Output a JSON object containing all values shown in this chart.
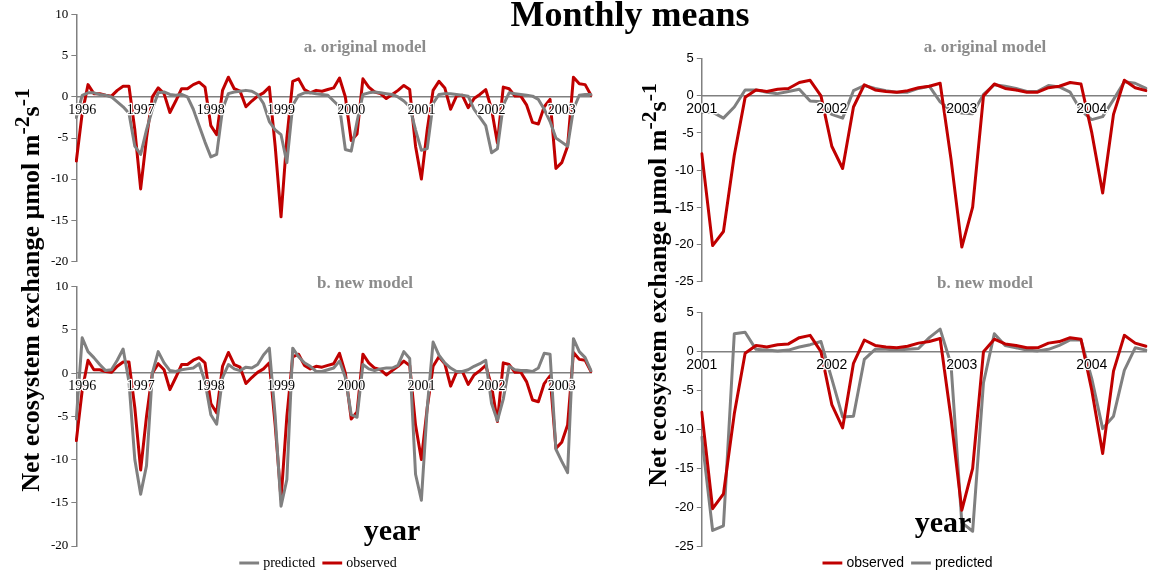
{
  "chart_data": [
    {
      "type": "line",
      "title": "Monthly means",
      "subtitle": "a. original model",
      "ylabel": "Net ecosystem exchange µmol m$^{-2}$s$^{-1}$",
      "marker": "none",
      "categories": [
        null,
        "1996",
        null,
        null,
        null,
        null,
        null,
        null,
        null,
        null,
        null,
        "1997",
        null,
        null,
        null,
        null,
        null,
        null,
        null,
        null,
        null,
        null,
        null,
        "1998",
        null,
        null,
        null,
        null,
        null,
        null,
        null,
        null,
        null,
        null,
        null,
        "1999",
        null,
        null,
        null,
        null,
        null,
        null,
        null,
        null,
        null,
        null,
        null,
        "2000",
        null,
        null,
        null,
        null,
        null,
        null,
        null,
        null,
        null,
        null,
        null,
        "2001",
        null,
        null,
        null,
        null,
        null,
        null,
        null,
        null,
        null,
        null,
        null,
        "2002",
        null,
        null,
        null,
        null,
        null,
        null,
        null,
        null,
        null,
        null,
        null,
        "2003",
        null,
        null,
        null,
        null,
        null
      ],
      "ylim": [
        -20,
        10
      ],
      "yticks": [
        -20,
        -15,
        -10,
        -5,
        0,
        5,
        10
      ],
      "series": [
        {
          "color": "#808080",
          "values": [
            -2.5,
            0.2,
            0.5,
            0.5,
            0.3,
            0.2,
            0,
            -0.6,
            -1.2,
            -2,
            -6,
            -7,
            -4,
            -1.5,
            0.5,
            0.6,
            0.3,
            0.2,
            0.3,
            0,
            -1.5,
            -3.5,
            -5.5,
            -7.3,
            -7,
            -1.5,
            0.4,
            0.6,
            0.7,
            0.8,
            0.7,
            0.3,
            -0.8,
            -3,
            -4,
            -4.6,
            -8,
            -1,
            0.2,
            0.5,
            0.5,
            0.4,
            0.3,
            0.2,
            -0.5,
            -1.2,
            -6.4,
            -6.6,
            -3,
            0.3,
            0.5,
            0.6,
            0.5,
            0.4,
            0.3,
            0,
            -0.5,
            -1.2,
            -4,
            -6.5,
            -6.3,
            -0.8,
            0.3,
            0.4,
            0.4,
            0.3,
            0.2,
            0.1,
            -1.5,
            -2.5,
            -3.5,
            -6.8,
            -6.3,
            -1,
            0.5,
            0.4,
            0.3,
            0.2,
            0.1,
            -0.3,
            -1.5,
            -3,
            -5,
            -5.5,
            -6,
            -1.5,
            0.2,
            0.3,
            0.3
          ]
        },
        {
          "color": "#c00000",
          "values": [
            -7.8,
            -2,
            1.5,
            0.4,
            0.4,
            0.2,
            0.1,
            0.8,
            1.3,
            1.3,
            -4,
            -11.2,
            -5,
            0,
            1.1,
            0.4,
            -1.9,
            -0.5,
            1,
            1,
            1.5,
            1.8,
            1.2,
            -3.5,
            -4.6,
            0.8,
            2.4,
            1,
            0.7,
            -1.2,
            -0.5,
            0.1,
            0.5,
            1.2,
            -6,
            -14.6,
            -5,
            1.9,
            2.2,
            0.9,
            0.5,
            0.8,
            0.7,
            0.9,
            1.1,
            2.3,
            0,
            -5.3,
            -4.5,
            2.2,
            1.2,
            0.6,
            0.4,
            -0.2,
            0.3,
            0.8,
            1.4,
            0.9,
            -6,
            -10,
            -4,
            0.8,
            1.9,
            1.1,
            -1.5,
            0.1,
            0.2,
            -1.3,
            -0.2,
            0.3,
            0.9,
            -1.5,
            -5.6,
            1.2,
            1,
            0.1,
            0.1,
            -1,
            -3.1,
            -3.3,
            -1.2,
            -0.3,
            -8.7,
            -8,
            -6,
            2.4,
            1.6,
            1.5,
            0.2
          ]
        }
      ]
    },
    {
      "type": "line",
      "subtitle": "b. new model",
      "xlabel": "year",
      "marker": "none",
      "legend": "bottom",
      "categories": [
        null,
        "1996",
        null,
        null,
        null,
        null,
        null,
        null,
        null,
        null,
        null,
        "1997",
        null,
        null,
        null,
        null,
        null,
        null,
        null,
        null,
        null,
        null,
        null,
        "1998",
        null,
        null,
        null,
        null,
        null,
        null,
        null,
        null,
        null,
        null,
        null,
        "1999",
        null,
        null,
        null,
        null,
        null,
        null,
        null,
        null,
        null,
        null,
        null,
        "2000",
        null,
        null,
        null,
        null,
        null,
        null,
        null,
        null,
        null,
        null,
        null,
        "2001",
        null,
        null,
        null,
        null,
        null,
        null,
        null,
        null,
        null,
        null,
        null,
        "2002",
        null,
        null,
        null,
        null,
        null,
        null,
        null,
        null,
        null,
        null,
        null,
        "2003",
        null,
        null,
        null,
        null,
        null
      ],
      "ylim": [
        -20,
        10
      ],
      "yticks": [
        -20,
        -15,
        -10,
        -5,
        0,
        5,
        10
      ],
      "series": [
        {
          "name": "predicted",
          "color": "#808080",
          "values": [
            -5.3,
            4.1,
            2.5,
            1.8,
            1,
            0.3,
            0.4,
            1.5,
            2.8,
            -1,
            -10,
            -14,
            -10.7,
            0,
            2.5,
            1.2,
            0.3,
            0.2,
            0.4,
            0.5,
            0.6,
            1.1,
            -1,
            -4.8,
            -5.9,
            -0.5,
            1,
            0.5,
            0.3,
            0.7,
            0.6,
            1,
            2.1,
            2.9,
            -5,
            -15.4,
            -12.3,
            2.9,
            1.9,
            1.2,
            0.8,
            0.2,
            0.2,
            0.4,
            0.6,
            1.4,
            -0.5,
            -4.8,
            -5.1,
            1,
            0.5,
            0.3,
            0.5,
            0.6,
            0.6,
            0.9,
            2.5,
            1.7,
            -11.7,
            -14.7,
            -4,
            3.6,
            2.1,
            1.2,
            0.6,
            0.2,
            0.2,
            0.4,
            0.8,
            1.1,
            1.5,
            -3.5,
            -5.5,
            -3,
            0.8,
            0.4,
            0.3,
            0.3,
            0.2,
            0.6,
            2.3,
            2.2,
            -8.8,
            -10.2,
            -11.5,
            4,
            2.5,
            1.8,
            0.3
          ]
        },
        {
          "name": "observed",
          "color": "#c00000",
          "values": [
            -7.8,
            -2,
            1.5,
            0.4,
            0.4,
            0.2,
            0.1,
            0.8,
            1.3,
            1.3,
            -4,
            -11.2,
            -5,
            0,
            1.1,
            0.4,
            -1.9,
            -0.5,
            1,
            1,
            1.5,
            1.8,
            1.2,
            -3.5,
            -4.6,
            0.8,
            2.4,
            1,
            0.7,
            -1.2,
            -0.5,
            0.1,
            0.5,
            1.2,
            -6,
            -14.6,
            -5,
            1.9,
            2.2,
            0.9,
            0.5,
            0.8,
            0.7,
            0.9,
            1.1,
            2.3,
            0,
            -5.3,
            -4.5,
            2.2,
            1.2,
            0.6,
            0.4,
            -0.2,
            0.3,
            0.8,
            1.4,
            0.9,
            -6,
            -10,
            -4,
            0.8,
            1.9,
            1.1,
            -1.5,
            0.1,
            0.2,
            -1.3,
            -0.2,
            0.3,
            0.9,
            -1.5,
            -5.6,
            1.2,
            1,
            0.1,
            0.1,
            -1,
            -3.1,
            -3.3,
            -1.2,
            -0.3,
            -8.7,
            -8,
            -6,
            2.4,
            1.6,
            1.5,
            0.2
          ]
        }
      ]
    },
    {
      "type": "line",
      "subtitle": "a. original model",
      "ylabel": "Net ecosystem exchange µmol m$^{-2}$s$^{-1}$",
      "marker": "none",
      "categories": [
        "2001",
        null,
        null,
        null,
        null,
        null,
        null,
        null,
        null,
        null,
        null,
        null,
        "2002",
        null,
        null,
        null,
        null,
        null,
        null,
        null,
        null,
        null,
        null,
        null,
        "2003",
        null,
        null,
        null,
        null,
        null,
        null,
        null,
        null,
        null,
        null,
        null,
        "2004",
        null,
        null,
        null,
        null,
        null
      ],
      "ylim": [
        -25,
        5
      ],
      "yticks": [
        -25,
        -20,
        -15,
        -10,
        -5,
        0,
        5
      ],
      "series": [
        {
          "color": "#c00000",
          "values": [
            -7.8,
            -20.2,
            -18.3,
            -8,
            -0.2,
            0.8,
            0.6,
            0.9,
            1,
            1.8,
            2.1,
            0,
            -6.8,
            -9.8,
            -1.5,
            1.5,
            0.8,
            0.6,
            0.5,
            0.7,
            1.1,
            1.3,
            1.7,
            -8.5,
            -20.4,
            -15,
            0,
            1.6,
            1,
            0.8,
            0.5,
            0.5,
            1.1,
            1.3,
            1.8,
            1.6,
            -5,
            -13.1,
            -2.5,
            2.1,
            1.1,
            0.7
          ]
        },
        {
          "color": "#808080",
          "values": [
            -2.2,
            -2.2,
            -3,
            -1.5,
            0.8,
            0.8,
            0.5,
            0.3,
            0.6,
            0.9,
            -0.7,
            -0.8,
            -2.5,
            -3,
            0.7,
            1.4,
            1,
            0.7,
            0.5,
            0.5,
            1,
            1.3,
            -0.8,
            -2,
            -2.3,
            -2.4,
            0.2,
            1.5,
            1.3,
            1,
            0.6,
            0.6,
            1.4,
            1.2,
            0.5,
            -2,
            -3.2,
            -2.8,
            -0.5,
            1.9,
            1.7,
            1
          ]
        }
      ]
    },
    {
      "type": "line",
      "subtitle": "b. new model",
      "xlabel": "year",
      "marker": "none",
      "legend": "bottom",
      "categories": [
        "2001",
        null,
        null,
        null,
        null,
        null,
        null,
        null,
        null,
        null,
        null,
        null,
        "2002",
        null,
        null,
        null,
        null,
        null,
        null,
        null,
        null,
        null,
        null,
        null,
        "2003",
        null,
        null,
        null,
        null,
        null,
        null,
        null,
        null,
        null,
        null,
        null,
        "2004",
        null,
        null,
        null,
        null,
        null
      ],
      "ylim": [
        -25,
        5
      ],
      "yticks": [
        -25,
        -20,
        -15,
        -10,
        -5,
        0,
        5
      ],
      "series": [
        {
          "name": "observed",
          "color": "#c00000",
          "values": [
            -7.8,
            -20.2,
            -18.3,
            -8,
            -0.2,
            0.8,
            0.6,
            0.9,
            1,
            1.8,
            2.1,
            0,
            -6.8,
            -9.8,
            -1.5,
            1.5,
            0.8,
            0.6,
            0.5,
            0.7,
            1.1,
            1.3,
            1.7,
            -8.5,
            -20.4,
            -15,
            0,
            1.6,
            1,
            0.8,
            0.5,
            0.5,
            1.1,
            1.3,
            1.8,
            1.6,
            -5,
            -13.1,
            -2.5,
            2.1,
            1.1,
            0.7
          ]
        },
        {
          "name": "predicted",
          "color": "#808080",
          "values": [
            -11,
            -23,
            -22.4,
            2.3,
            2.5,
            0.3,
            0.2,
            0.1,
            0.2,
            0.6,
            0.9,
            1.3,
            -3.5,
            -8.4,
            -8.3,
            -1,
            0.3,
            0.3,
            0.2,
            0.3,
            0.4,
            1.8,
            2.9,
            -1.6,
            -22,
            -23.1,
            -4,
            2.3,
            0.8,
            0.5,
            0.2,
            0.1,
            0.3,
            0.8,
            1.5,
            1.5,
            -3.5,
            -9.9,
            -8.3,
            -2.4,
            0.5,
            0.2
          ]
        }
      ]
    }
  ]
}
